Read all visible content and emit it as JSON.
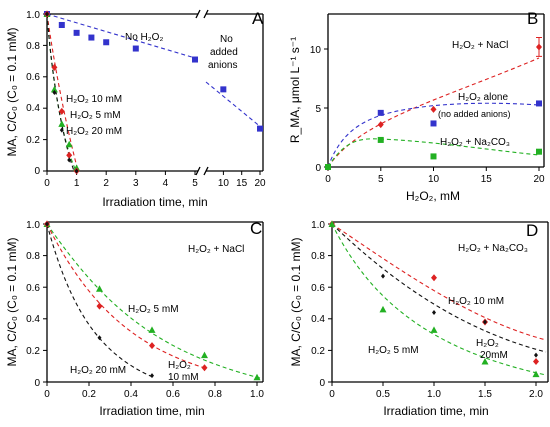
{
  "chart_data": [
    {
      "panel": "A",
      "type": "scatter",
      "ylabel": "MA, C/C₀ (C₀ = 0.1 mM)",
      "xlabel": "Irradiation time, min",
      "ylim": [
        0,
        1.0
      ],
      "xticks": [
        "0",
        "1",
        "2",
        "3",
        "4",
        "5",
        "10",
        "15",
        "20"
      ],
      "yticks": [
        "0",
        "0.2",
        "0.4",
        "0.6",
        "0.8",
        "1.0"
      ],
      "annotations": [
        "No H₂O₂",
        "No added anions",
        "H₂O₂  10 mM",
        "H₂O₂  5 mM",
        "H₂O₂  20 mM"
      ],
      "series": [
        {
          "name": "No H₂O₂",
          "color": "#3333cc",
          "marker": "square",
          "x": [
            0,
            0.5,
            1,
            1.5,
            2,
            3,
            5,
            10,
            20
          ],
          "y": [
            1.0,
            0.93,
            0.88,
            0.85,
            0.82,
            0.78,
            0.71,
            0.52,
            0.27
          ]
        },
        {
          "name": "H₂O₂  5 mM",
          "color": "#22b022",
          "marker": "triangle",
          "x": [
            0,
            0.25,
            0.5,
            0.75,
            1
          ],
          "y": [
            1.0,
            0.52,
            0.3,
            0.17,
            0.02
          ]
        },
        {
          "name": "H₂O₂  10 mM",
          "color": "#dd2222",
          "marker": "diamond",
          "x": [
            0,
            0.25,
            0.5,
            0.75,
            1
          ],
          "y": [
            1.0,
            0.66,
            0.38,
            0.1,
            0.0
          ]
        },
        {
          "name": "H₂O₂  20 mM",
          "color": "#111111",
          "marker": "diamond-small",
          "x": [
            0,
            0.25,
            0.5,
            0.75,
            1
          ],
          "y": [
            1.0,
            0.5,
            0.26,
            0.07,
            0.0
          ]
        }
      ]
    },
    {
      "panel": "B",
      "type": "scatter",
      "ylabel": "R_MA, μmol L⁻¹ s⁻¹",
      "xlabel": "H₂O₂, mM",
      "xlim": [
        0,
        20
      ],
      "ylim": [
        0,
        13
      ],
      "xticks": [
        "0",
        "5",
        "10",
        "15",
        "20"
      ],
      "yticks": [
        "0",
        "5",
        "10"
      ],
      "annotations": [
        "H₂O₂ + NaCl",
        "H₂O₂ alone",
        "(no added anions)",
        "H₂O₂ + Na₂CO₃"
      ],
      "series": [
        {
          "name": "H₂O₂ + NaCl",
          "color": "#dd2222",
          "marker": "diamond",
          "x": [
            0,
            5,
            10,
            20
          ],
          "y": [
            0,
            3.6,
            4.9,
            10.2
          ],
          "error_last": 0.8
        },
        {
          "name": "H₂O₂ alone (no added anions)",
          "color": "#3333cc",
          "marker": "square",
          "x": [
            0,
            5,
            10,
            20
          ],
          "y": [
            0,
            4.6,
            3.7,
            5.4
          ]
        },
        {
          "name": "H₂O₂ + Na₂CO₃",
          "color": "#22b022",
          "marker": "square",
          "x": [
            0,
            5,
            10,
            20
          ],
          "y": [
            0,
            2.3,
            0.9,
            1.3
          ]
        }
      ]
    },
    {
      "panel": "C",
      "type": "scatter",
      "ylabel": "MA, C/C₀ (C₀ = 0.1 mM)",
      "xlabel": "Irradiation time, min",
      "xlim": [
        0,
        1.0
      ],
      "ylim": [
        0,
        1.0
      ],
      "xticks": [
        "0",
        "0.2",
        "0.4",
        "0.6",
        "0.8",
        "1.0"
      ],
      "yticks": [
        "0",
        "0.2",
        "0.4",
        "0.6",
        "0.8",
        "1.0"
      ],
      "annotations": [
        "H₂O₂ + NaCl",
        "H₂O₂  5 mM",
        "H₂O₂  20 mM",
        "H₂O₂",
        "10 mM"
      ],
      "series": [
        {
          "name": "H₂O₂  5 mM",
          "color": "#22b022",
          "marker": "triangle",
          "x": [
            0,
            0.25,
            0.5,
            0.75,
            1.0
          ],
          "y": [
            1.0,
            0.59,
            0.33,
            0.17,
            0.03
          ]
        },
        {
          "name": "H₂O₂  10 mM",
          "color": "#dd2222",
          "marker": "diamond",
          "x": [
            0,
            0.25,
            0.5,
            0.75
          ],
          "y": [
            1.0,
            0.48,
            0.23,
            0.09
          ]
        },
        {
          "name": "H₂O₂  20 mM",
          "color": "#111111",
          "marker": "diamond-small",
          "x": [
            0,
            0.25,
            0.5
          ],
          "y": [
            1.0,
            0.28,
            0.04
          ]
        }
      ]
    },
    {
      "panel": "D",
      "type": "scatter",
      "ylabel": "MA, C/C₀ (C₀ = 0.1 mM)",
      "xlabel": "Irradiation time, min",
      "xlim": [
        0,
        2.0
      ],
      "ylim": [
        0,
        1.0
      ],
      "xticks": [
        "0",
        "0.5",
        "1.0",
        "1.5",
        "2.0"
      ],
      "yticks": [
        "0",
        "0.2",
        "0.4",
        "0.6",
        "0.8",
        "1.0"
      ],
      "annotations": [
        "H₂O₂ + Na₂CO₃",
        "H₂O₂  10 mM",
        "H₂O₂",
        "20mM",
        "H₂O₂  5 mM"
      ],
      "series": [
        {
          "name": "H₂O₂  10 mM",
          "color": "#dd2222",
          "marker": "diamond",
          "x": [
            0,
            1.0,
            1.5,
            2.0
          ],
          "y": [
            1.0,
            0.66,
            0.38,
            0.13
          ]
        },
        {
          "name": "H₂O₂ 20mM",
          "color": "#111111",
          "marker": "diamond-small",
          "x": [
            0,
            0.5,
            1.0,
            1.5,
            2.0
          ],
          "y": [
            1.0,
            0.67,
            0.44,
            0.38,
            0.17
          ]
        },
        {
          "name": "H₂O₂  5 mM",
          "color": "#22b022",
          "marker": "triangle",
          "x": [
            0,
            0.5,
            1.0,
            1.5,
            2.0
          ],
          "y": [
            1.0,
            0.46,
            0.33,
            0.13,
            0.05
          ]
        }
      ]
    }
  ]
}
